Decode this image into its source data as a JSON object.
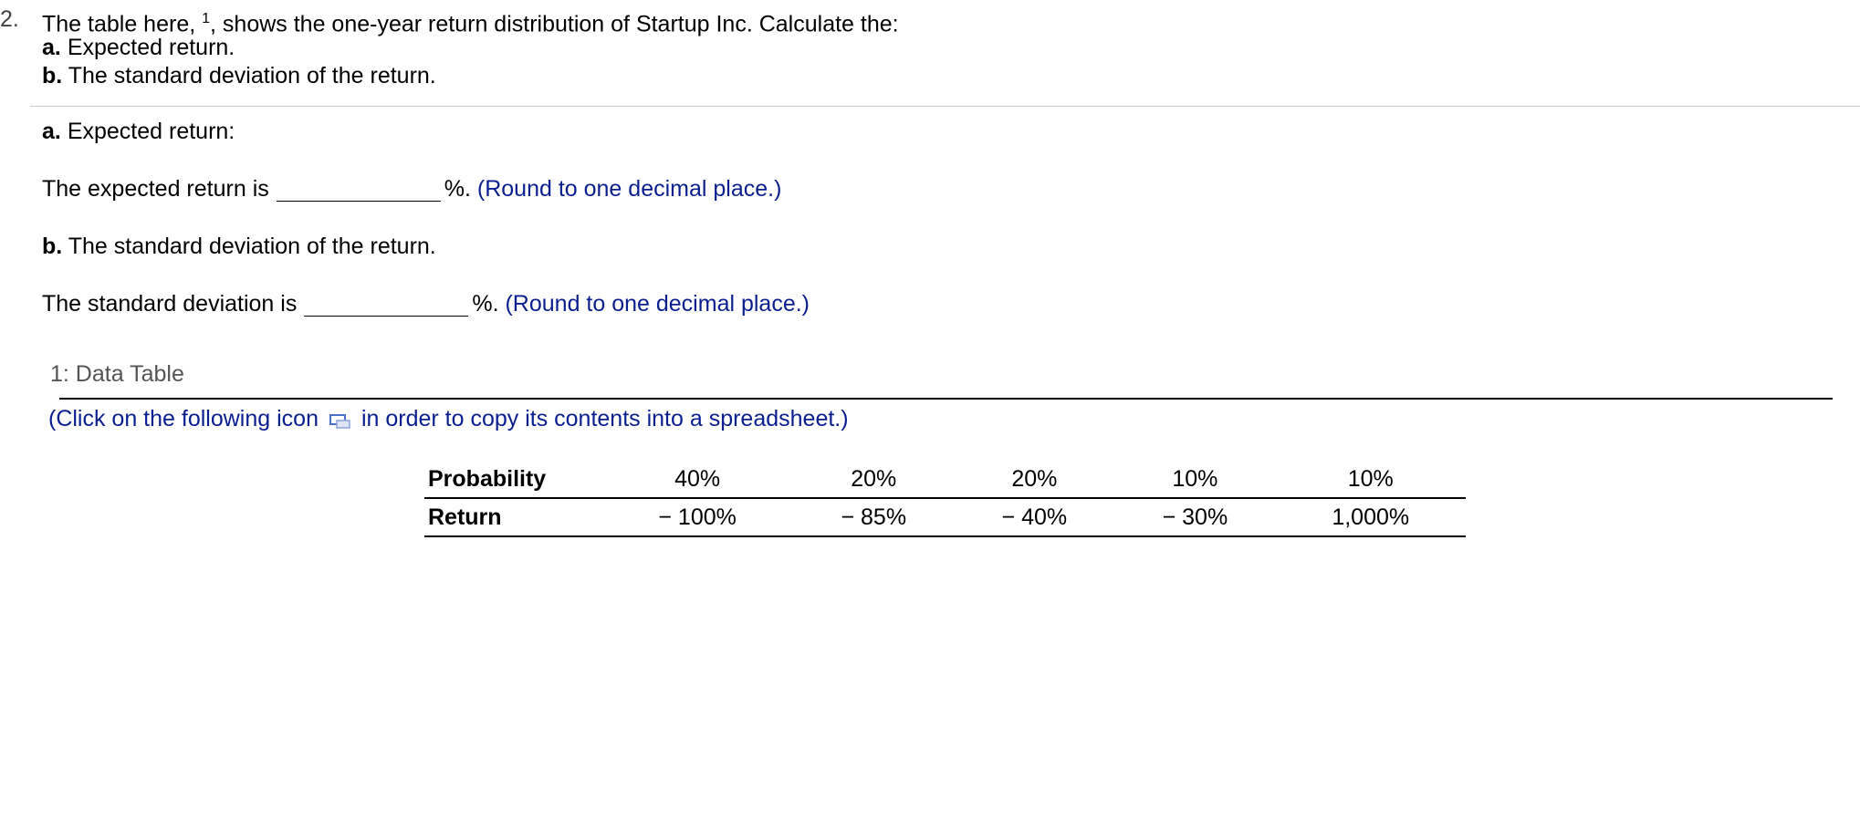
{
  "question": {
    "number": "2.",
    "prompt_start": "The table here,",
    "footnote": "1",
    "prompt_end": ", shows the one-year return distribution of Startup Inc. Calculate the:",
    "parts": [
      {
        "label": "a.",
        "text": "Expected return."
      },
      {
        "label": "b.",
        "text": "The standard deviation of the return."
      }
    ]
  },
  "answers": [
    {
      "heading_label": "a.",
      "heading_text": "Expected return:",
      "prefix": "The expected return is",
      "suffix": "%.",
      "hint": "(Round to one decimal place.)"
    },
    {
      "heading_label": "b.",
      "heading_text": "The standard deviation of the return.",
      "prefix": "The standard deviation is",
      "suffix": "%.",
      "hint": "(Round to one decimal place.)"
    }
  ],
  "data_table": {
    "title": "1: Data Table",
    "note_start": "(Click on the following icon",
    "note_end": "in order to copy its contents into a spreadsheet.)",
    "rows": [
      [
        "Probability",
        "40%",
        "20%",
        "20%",
        "10%",
        "10%"
      ],
      [
        "Return",
        "− 100%",
        "− 85%",
        "− 40%",
        "− 30%",
        "1,000%"
      ]
    ]
  }
}
